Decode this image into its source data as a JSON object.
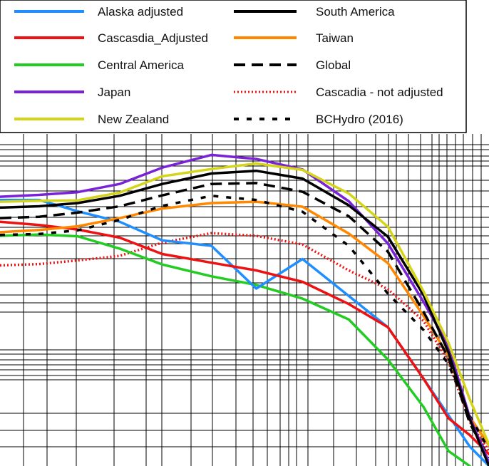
{
  "chart_data": {
    "type": "line",
    "title": "",
    "xlabel": "",
    "ylabel": "",
    "x_scale": "log",
    "y_scale": "log",
    "grid": true,
    "legend_position": "top, two columns",
    "legend_columns": [
      [
        "Alaska adjusted",
        "Cascasdia_Adjusted",
        "Central America",
        "Japan",
        "New Zealand"
      ],
      [
        "South America",
        "Taiwan",
        "Global",
        "Cascadia - not adjusted",
        "BCHydro (2016)"
      ]
    ],
    "series": [
      {
        "name": "Alaska adjusted",
        "color": "#1f8fff",
        "dash": "solid",
        "points": [
          [
            0.0,
            0.585
          ],
          [
            0.055,
            0.585
          ],
          [
            0.109,
            0.56
          ],
          [
            0.168,
            0.537
          ],
          [
            0.228,
            0.496
          ],
          [
            0.297,
            0.484
          ],
          [
            0.36,
            0.39
          ],
          [
            0.425,
            0.455
          ],
          [
            0.545,
            0.305
          ],
          [
            0.595,
            0.192
          ],
          [
            0.66,
            0.043
          ],
          [
            0.687,
            0.0
          ]
        ]
      },
      {
        "name": "Cascasdia_Adjusted",
        "color": "#ee1111",
        "dash": "solid",
        "points": [
          [
            0.0,
            0.537
          ],
          [
            0.055,
            0.53
          ],
          [
            0.109,
            0.52
          ],
          [
            0.168,
            0.502
          ],
          [
            0.228,
            0.466
          ],
          [
            0.297,
            0.447
          ],
          [
            0.36,
            0.43
          ],
          [
            0.425,
            0.405
          ],
          [
            0.49,
            0.356
          ],
          [
            0.545,
            0.305
          ],
          [
            0.595,
            0.192
          ],
          [
            0.63,
            0.105
          ],
          [
            0.66,
            0.068
          ],
          [
            0.687,
            0.026
          ]
        ]
      },
      {
        "name": "Central America",
        "color": "#22cc22",
        "dash": "solid",
        "points": [
          [
            0.0,
            0.506
          ],
          [
            0.055,
            0.509
          ],
          [
            0.109,
            0.505
          ],
          [
            0.168,
            0.478
          ],
          [
            0.228,
            0.443
          ],
          [
            0.297,
            0.417
          ],
          [
            0.36,
            0.398
          ],
          [
            0.425,
            0.368
          ],
          [
            0.49,
            0.322
          ],
          [
            0.545,
            0.234
          ],
          [
            0.595,
            0.13
          ],
          [
            0.63,
            0.033
          ],
          [
            0.66,
            0.0
          ]
        ]
      },
      {
        "name": "Japan",
        "color": "#7a22d8",
        "dash": "solid",
        "points": [
          [
            0.0,
            0.592
          ],
          [
            0.055,
            0.596
          ],
          [
            0.109,
            0.602
          ],
          [
            0.168,
            0.62
          ],
          [
            0.228,
            0.656
          ],
          [
            0.297,
            0.684
          ],
          [
            0.36,
            0.675
          ],
          [
            0.425,
            0.652
          ],
          [
            0.49,
            0.582
          ],
          [
            0.545,
            0.489
          ],
          [
            0.595,
            0.361
          ],
          [
            0.63,
            0.264
          ],
          [
            0.66,
            0.107
          ],
          [
            0.687,
            0.008
          ]
        ]
      },
      {
        "name": "New Zealand",
        "color": "#d4d418",
        "dash": "solid",
        "points": [
          [
            0.0,
            0.581
          ],
          [
            0.055,
            0.583
          ],
          [
            0.109,
            0.584
          ],
          [
            0.168,
            0.601
          ],
          [
            0.228,
            0.637
          ],
          [
            0.297,
            0.653
          ],
          [
            0.36,
            0.665
          ],
          [
            0.425,
            0.651
          ],
          [
            0.49,
            0.599
          ],
          [
            0.545,
            0.526
          ],
          [
            0.595,
            0.384
          ],
          [
            0.63,
            0.271
          ],
          [
            0.66,
            0.147
          ],
          [
            0.687,
            0.047
          ]
        ]
      },
      {
        "name": "South America",
        "color": "#000000",
        "dash": "solid",
        "points": [
          [
            0.0,
            0.568
          ],
          [
            0.055,
            0.571
          ],
          [
            0.109,
            0.578
          ],
          [
            0.168,
            0.594
          ],
          [
            0.228,
            0.62
          ],
          [
            0.297,
            0.643
          ],
          [
            0.36,
            0.649
          ],
          [
            0.425,
            0.632
          ],
          [
            0.49,
            0.573
          ],
          [
            0.545,
            0.504
          ],
          [
            0.595,
            0.376
          ],
          [
            0.63,
            0.25
          ],
          [
            0.66,
            0.103
          ],
          [
            0.687,
            0.0
          ]
        ]
      },
      {
        "name": "Taiwan",
        "color": "#ff8800",
        "dash": "solid",
        "points": [
          [
            0.0,
            0.514
          ],
          [
            0.055,
            0.519
          ],
          [
            0.109,
            0.527
          ],
          [
            0.168,
            0.545
          ],
          [
            0.228,
            0.566
          ],
          [
            0.297,
            0.578
          ],
          [
            0.36,
            0.581
          ],
          [
            0.425,
            0.57
          ],
          [
            0.49,
            0.511
          ],
          [
            0.545,
            0.446
          ],
          [
            0.595,
            0.33
          ],
          [
            0.63,
            0.243
          ],
          [
            0.66,
            0.108
          ],
          [
            0.687,
            0.045
          ]
        ]
      },
      {
        "name": "Global",
        "color": "#000000",
        "dash": "longdash",
        "points": [
          [
            0.0,
            0.545
          ],
          [
            0.055,
            0.548
          ],
          [
            0.109,
            0.557
          ],
          [
            0.168,
            0.571
          ],
          [
            0.228,
            0.595
          ],
          [
            0.297,
            0.62
          ],
          [
            0.36,
            0.622
          ],
          [
            0.425,
            0.603
          ],
          [
            0.49,
            0.549
          ],
          [
            0.545,
            0.471
          ],
          [
            0.595,
            0.339
          ],
          [
            0.63,
            0.238
          ],
          [
            0.66,
            0.094
          ],
          [
            0.687,
            0.018
          ]
        ]
      },
      {
        "name": "Cascadia - not adjusted",
        "color": "#ee1111",
        "dash": "dotted",
        "points": [
          [
            0.0,
            0.441
          ],
          [
            0.055,
            0.444
          ],
          [
            0.109,
            0.452
          ],
          [
            0.168,
            0.462
          ],
          [
            0.228,
            0.491
          ],
          [
            0.297,
            0.512
          ],
          [
            0.36,
            0.506
          ],
          [
            0.425,
            0.487
          ],
          [
            0.49,
            0.43
          ],
          [
            0.545,
            0.389
          ],
          [
            0.595,
            0.319
          ],
          [
            0.63,
            0.229
          ],
          [
            0.66,
            0.097
          ],
          [
            0.687,
            0.032
          ]
        ]
      },
      {
        "name": "BCHydro (2016)",
        "color": "#000000",
        "dash": "shortdash",
        "points": [
          [
            0.0,
            0.508
          ],
          [
            0.055,
            0.51
          ],
          [
            0.109,
            0.518
          ],
          [
            0.168,
            0.541
          ],
          [
            0.228,
            0.572
          ],
          [
            0.297,
            0.594
          ],
          [
            0.36,
            0.585
          ],
          [
            0.425,
            0.559
          ],
          [
            0.49,
            0.484
          ],
          [
            0.545,
            0.379
          ],
          [
            0.595,
            0.299
          ],
          [
            0.63,
            0.224
          ],
          [
            0.66,
            0.11
          ],
          [
            0.687,
            0.036
          ]
        ]
      }
    ]
  }
}
